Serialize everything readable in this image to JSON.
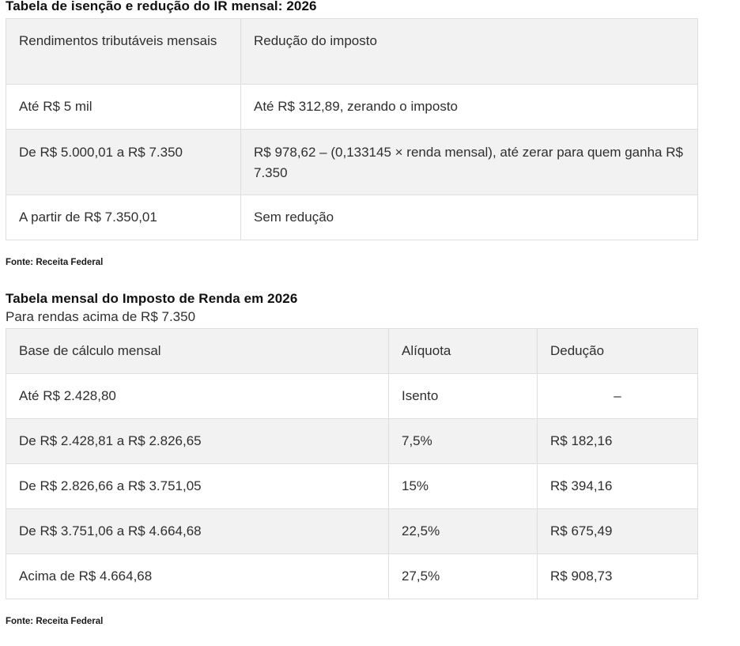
{
  "table1": {
    "title": "Tabela de isenção e redução do IR mensal: 2026",
    "headers": [
      "Rendimentos tributáveis mensais",
      "Redução do imposto"
    ],
    "rows": [
      [
        "Até R$ 5 mil",
        "Até R$ 312,89, zerando o imposto"
      ],
      [
        "De R$ 5.000,01 a R$ 7.350",
        "R$ 978,62 – (0,133145 × renda mensal), até zerar para quem ganha R$ 7.350"
      ],
      [
        "A partir de R$ 7.350,01",
        "Sem redução"
      ]
    ],
    "source": "Fonte: Receita Federal"
  },
  "table2": {
    "title": "Tabela mensal do Imposto de Renda em 2026",
    "subtitle": "Para rendas acima de R$ 7.350",
    "headers": [
      "Base de cálculo mensal",
      "Alíquota",
      "Dedução"
    ],
    "rows": [
      [
        "Até R$ 2.428,80",
        "Isento",
        "–"
      ],
      [
        "De R$ 2.428,81 a R$ 2.826,65",
        "7,5%",
        "R$ 182,16"
      ],
      [
        "De R$ 2.826,66 a R$ 3.751,05",
        "15%",
        "R$ 394,16"
      ],
      [
        "De R$ 3.751,06 a R$ 4.664,68",
        "22,5%",
        "R$ 675,49"
      ],
      [
        "Acima de R$ 4.664,68",
        "27,5%",
        "R$ 908,73"
      ]
    ],
    "source": "Fonte: Receita Federal"
  },
  "colors": {
    "header_bg": "#f2f2f2",
    "border": "#dedede",
    "text": "#2f2f2f"
  }
}
